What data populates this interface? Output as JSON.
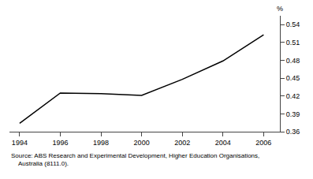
{
  "chart_data": {
    "type": "line",
    "x": [
      1994,
      1996,
      1998,
      2000,
      2002,
      2004,
      2006
    ],
    "values": [
      0.374,
      0.425,
      0.424,
      0.421,
      0.448,
      0.479,
      0.523
    ],
    "color": "#000000",
    "xlim": [
      1993.5,
      2006.8
    ],
    "xticks": [
      1994,
      1996,
      1998,
      2000,
      2002,
      2004,
      2006
    ],
    "ylim": [
      0.36,
      0.555
    ],
    "yticks": [
      0.36,
      0.39,
      0.42,
      0.45,
      0.48,
      0.51,
      0.54
    ],
    "ylabel": "%",
    "source": [
      "Source: ABS Research and Experimental Development, Higher Education Organisations,",
      "    Australia (8111.0)."
    ],
    "grid": false
  }
}
